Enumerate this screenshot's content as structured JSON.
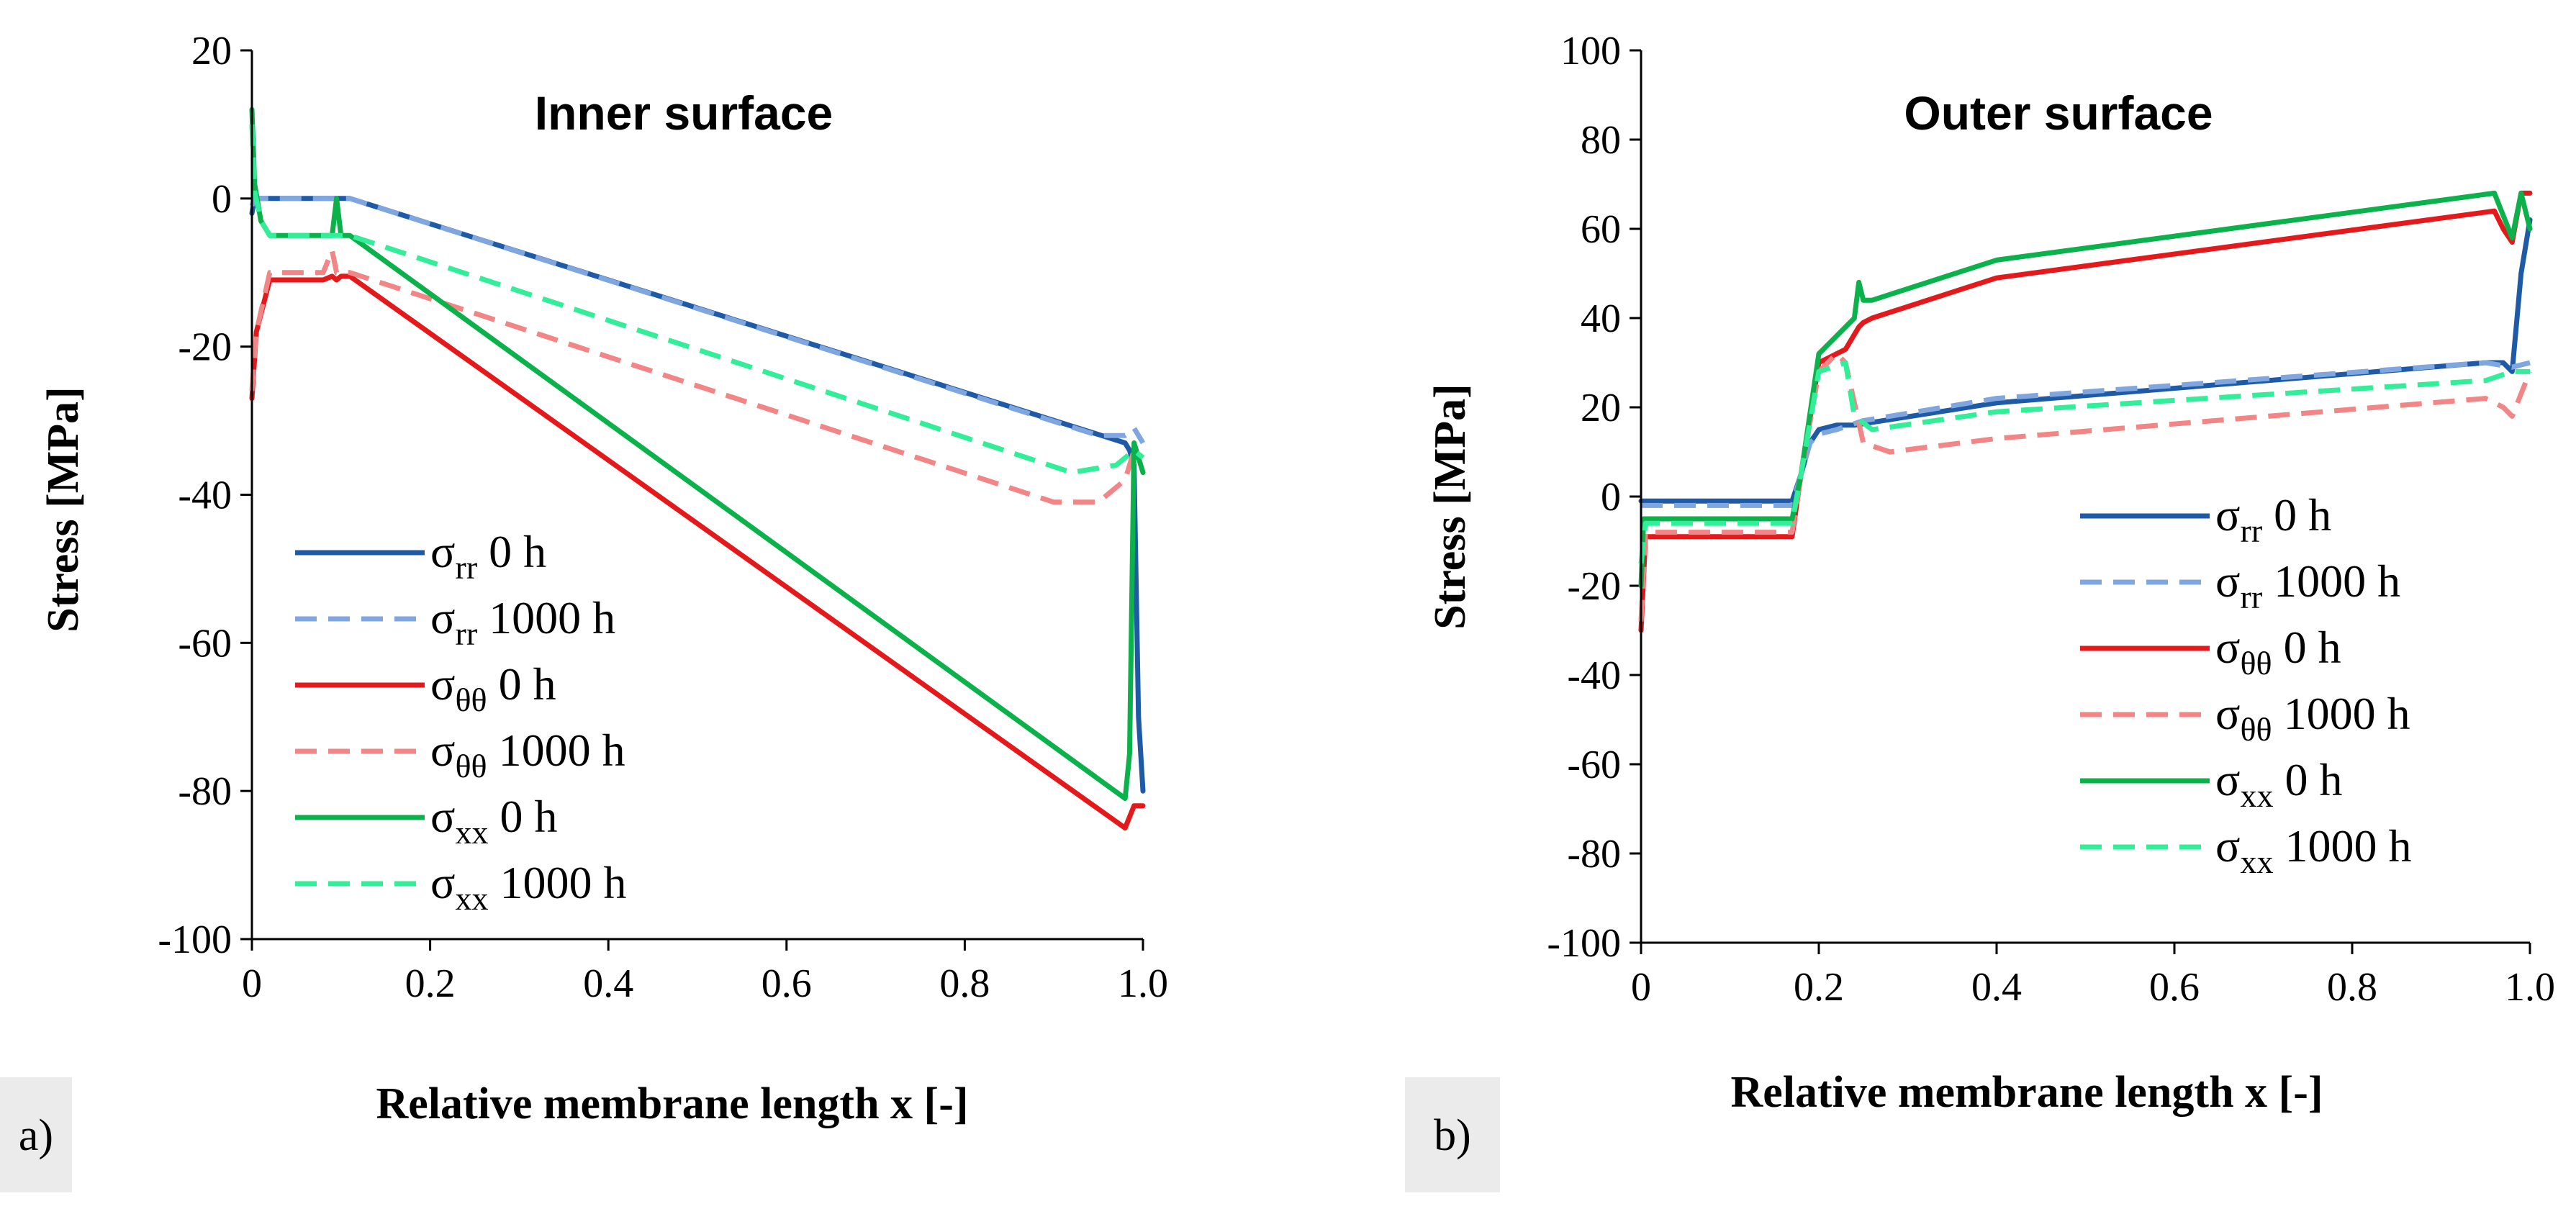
{
  "chart_data": [
    {
      "type": "line",
      "panel_label": "a)",
      "title": "Inner surface",
      "xlabel": "Relative membrane length x [-]",
      "ylabel": "Stress [MPa]",
      "xlim": [
        0,
        1.0
      ],
      "ylim": [
        -100,
        20
      ],
      "xticks": [
        0,
        0.2,
        0.4,
        0.6,
        0.8,
        1.0
      ],
      "xtick_labels": [
        "0",
        "0.2",
        "0.4",
        "0.6",
        "0.8",
        "1.0"
      ],
      "yticks": [
        20,
        0,
        -20,
        -40,
        -60,
        -80,
        -100
      ],
      "ytick_labels": [
        "20",
        "0",
        "-20",
        "-40",
        "-60",
        "-80",
        "-100"
      ],
      "legend_position": "bottom-left",
      "series": [
        {
          "name": "σrr 0 h",
          "sym": "σ",
          "sub": "rr",
          "suffix": " 0 h",
          "color": "#1f5aa6",
          "dashed": false,
          "x": [
            0,
            0.003,
            0.01,
            0.1,
            0.11,
            0.98,
            0.985,
            0.99,
            0.995,
            1.0
          ],
          "y": [
            -2,
            0,
            0,
            0,
            0,
            -33,
            -34,
            -36,
            -70,
            -80
          ]
        },
        {
          "name": "σrr 1000 h",
          "sym": "σ",
          "sub": "rr",
          "suffix": " 1000 h",
          "color": "#7fa6df",
          "dashed": true,
          "x": [
            0,
            0.003,
            0.01,
            0.1,
            0.11,
            0.95,
            0.98,
            0.99,
            1.0
          ],
          "y": [
            -1,
            0,
            0,
            0,
            0,
            -32,
            -32,
            -31,
            -33
          ]
        },
        {
          "name": "σθθ 0 h",
          "sym": "σ",
          "sub": "θθ",
          "suffix": " 0 h",
          "color": "#e3191c",
          "dashed": false,
          "x": [
            0,
            0.005,
            0.02,
            0.08,
            0.09,
            0.095,
            0.1,
            0.11,
            0.98,
            0.99,
            1.0
          ],
          "y": [
            -27,
            -18,
            -11,
            -11,
            -10.5,
            -11,
            -10.5,
            -10.5,
            -85,
            -82,
            -82
          ]
        },
        {
          "name": "σθθ 1000 h",
          "sym": "σ",
          "sub": "θθ",
          "suffix": " 1000 h",
          "color": "#f28585",
          "dashed": true,
          "x": [
            0,
            0.005,
            0.02,
            0.08,
            0.09,
            0.095,
            0.1,
            0.11,
            0.9,
            0.95,
            0.98,
            0.99,
            1.0
          ],
          "y": [
            -26,
            -18,
            -10,
            -10,
            -7,
            -10,
            -10,
            -10,
            -41,
            -41,
            -38,
            -34,
            -35
          ]
        },
        {
          "name": "σxx 0 h",
          "sym": "σ",
          "sub": "xx",
          "suffix": " 0 h",
          "color": "#0bb14b",
          "dashed": false,
          "x": [
            0,
            0.003,
            0.01,
            0.02,
            0.09,
            0.095,
            0.1,
            0.11,
            0.98,
            0.985,
            0.99,
            0.995,
            1.0
          ],
          "y": [
            12,
            2,
            -3,
            -5,
            -5,
            0,
            -5,
            -5,
            -81,
            -75,
            -33,
            -35,
            -37
          ]
        },
        {
          "name": "σxx 1000 h",
          "sym": "σ",
          "sub": "xx",
          "suffix": " 1000 h",
          "color": "#33ee99",
          "dashed": true,
          "x": [
            0,
            0.003,
            0.01,
            0.02,
            0.09,
            0.1,
            0.11,
            0.92,
            0.97,
            0.99,
            1.0
          ],
          "y": [
            10,
            1,
            -3,
            -5,
            -5,
            -5,
            -5,
            -37,
            -36,
            -34,
            -35
          ]
        }
      ]
    },
    {
      "type": "line",
      "panel_label": "b)",
      "title": "Outer surface",
      "xlabel": "Relative membrane length x [-]",
      "ylabel": "Stress [MPa]",
      "xlim": [
        0,
        1.0
      ],
      "ylim": [
        -100,
        100
      ],
      "xticks": [
        0,
        0.2,
        0.4,
        0.6,
        0.8,
        1.0
      ],
      "xtick_labels": [
        "0",
        "0.2",
        "0.4",
        "0.6",
        "0.8",
        "1.0"
      ],
      "yticks": [
        100,
        80,
        60,
        40,
        20,
        0,
        -20,
        -40,
        -60,
        -80,
        -100
      ],
      "ytick_labels": [
        "100",
        "80",
        "60",
        "40",
        "20",
        "0",
        "-20",
        "-40",
        "-60",
        "-80",
        "-100"
      ],
      "legend_position": "bottom-right",
      "series": [
        {
          "name": "σrr 0 h",
          "sym": "σ",
          "sub": "rr",
          "suffix": " 0 h",
          "color": "#1f5aa6",
          "dashed": false,
          "x": [
            0,
            0.005,
            0.17,
            0.18,
            0.19,
            0.2,
            0.22,
            0.24,
            0.4,
            0.95,
            0.97,
            0.98,
            0.99,
            1.0
          ],
          "y": [
            -1,
            -1,
            -1,
            5,
            12,
            15,
            16,
            16,
            21,
            30,
            30,
            28,
            50,
            62
          ]
        },
        {
          "name": "σrr 1000 h",
          "sym": "σ",
          "sub": "rr",
          "suffix": " 1000 h",
          "color": "#7fa6df",
          "dashed": true,
          "x": [
            0,
            0.005,
            0.17,
            0.18,
            0.19,
            0.2,
            0.22,
            0.25,
            0.4,
            0.95,
            0.98,
            1.0
          ],
          "y": [
            -2,
            -2,
            -2,
            5,
            12,
            14,
            15,
            17,
            22,
            30,
            29,
            30
          ]
        },
        {
          "name": "σθθ 0 h",
          "sym": "σ",
          "sub": "θθ",
          "suffix": " 0 h",
          "color": "#e3191c",
          "dashed": false,
          "x": [
            0,
            0.005,
            0.17,
            0.18,
            0.2,
            0.23,
            0.245,
            0.25,
            0.26,
            0.4,
            0.96,
            0.97,
            0.98,
            0.99,
            1.0
          ],
          "y": [
            -30,
            -9,
            -9,
            5,
            30,
            33,
            38,
            39,
            40,
            49,
            64,
            60,
            57,
            68,
            68
          ]
        },
        {
          "name": "σθθ 1000 h",
          "sym": "σ",
          "sub": "θθ",
          "suffix": " 1000 h",
          "color": "#f28585",
          "dashed": true,
          "x": [
            0,
            0.005,
            0.17,
            0.18,
            0.2,
            0.22,
            0.23,
            0.25,
            0.28,
            0.4,
            0.95,
            0.97,
            0.98,
            1.0
          ],
          "y": [
            -28,
            -8,
            -8,
            5,
            28,
            32,
            30,
            12,
            10,
            13,
            22,
            20,
            18,
            28
          ]
        },
        {
          "name": "σxx 0 h",
          "sym": "σ",
          "sub": "xx",
          "suffix": " 0 h",
          "color": "#0bb14b",
          "dashed": false,
          "x": [
            0,
            0.003,
            0.01,
            0.17,
            0.18,
            0.2,
            0.22,
            0.24,
            0.245,
            0.25,
            0.26,
            0.4,
            0.96,
            0.97,
            0.98,
            0.99,
            1.0
          ],
          "y": [
            -20,
            -5,
            -5,
            -5,
            5,
            32,
            36,
            40,
            48,
            44,
            44,
            53,
            68,
            63,
            58,
            68,
            60
          ]
        },
        {
          "name": "σxx 1000 h",
          "sym": "σ",
          "sub": "xx",
          "suffix": " 1000 h",
          "color": "#33ee99",
          "dashed": true,
          "x": [
            0,
            0.005,
            0.17,
            0.18,
            0.2,
            0.23,
            0.24,
            0.26,
            0.4,
            0.95,
            0.98,
            1.0
          ],
          "y": [
            -15,
            -6,
            -6,
            5,
            28,
            30,
            18,
            15,
            19,
            26,
            28,
            28
          ]
        }
      ]
    }
  ]
}
